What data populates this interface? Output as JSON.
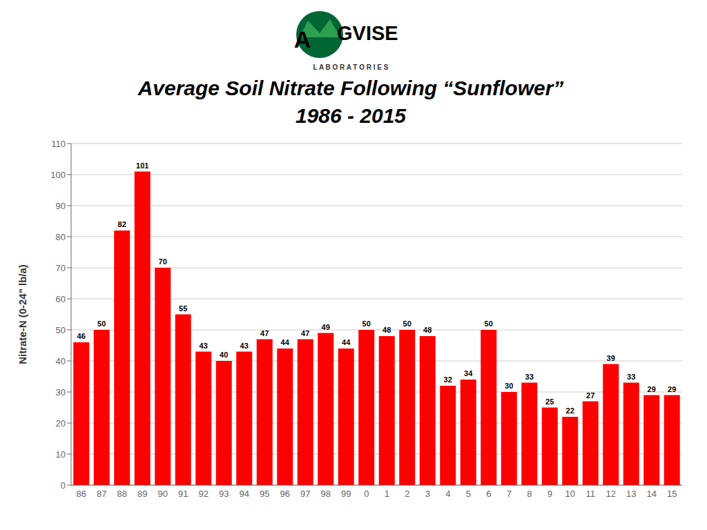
{
  "chart_data": {
    "type": "bar",
    "title": "Average Soil Nitrate Following “Sunflower”",
    "subtitle": "1986 - 2015",
    "categories": [
      "86",
      "87",
      "88",
      "89",
      "90",
      "91",
      "92",
      "93",
      "94",
      "95",
      "96",
      "97",
      "98",
      "99",
      "0",
      "1",
      "2",
      "3",
      "4",
      "5",
      "6",
      "7",
      "8",
      "9",
      "10",
      "11",
      "12",
      "13",
      "14",
      "15"
    ],
    "values": [
      46,
      50,
      82,
      101,
      70,
      55,
      43,
      40,
      43,
      47,
      44,
      47,
      49,
      44,
      50,
      48,
      50,
      48,
      32,
      34,
      50,
      30,
      33,
      25,
      22,
      27,
      39,
      33,
      29,
      29
    ],
    "color": "#ff0000",
    "ylabel": "Nitrate-N (0-24\" lb/a)",
    "ylim": [
      0,
      110
    ],
    "yticks": [
      0,
      10,
      20,
      30,
      40,
      50,
      60,
      70,
      80,
      90,
      100,
      110
    ],
    "grid": true,
    "data_labels": true,
    "annotations": [
      "A",
      "GVISE",
      "L A B O R A T O R I E S"
    ]
  }
}
